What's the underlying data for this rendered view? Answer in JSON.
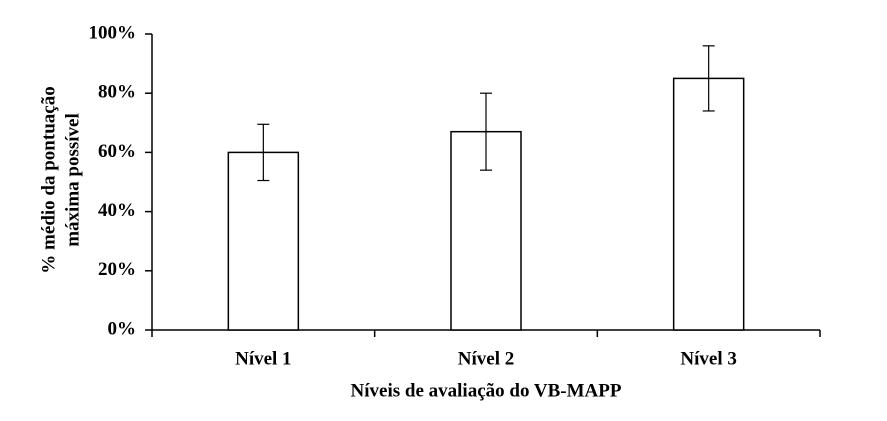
{
  "chart_data": {
    "type": "bar",
    "ylabel": [
      "% médio da pontuação",
      "máxima possível"
    ],
    "xlabel": "Níveis de avaliação do VB-MAPP",
    "categories": [
      "Nível 1",
      "Nível 2",
      "Nível 3"
    ],
    "values": [
      60,
      67,
      85
    ],
    "errors": [
      9.5,
      13,
      11
    ],
    "color": "#ffffff",
    "ylim": [
      0,
      100
    ],
    "yticks": [
      {
        "value": 0,
        "label": "0%"
      },
      {
        "value": 20,
        "label": "20%"
      },
      {
        "value": 40,
        "label": "40%"
      },
      {
        "value": 60,
        "label": "60%"
      },
      {
        "value": 80,
        "label": "80%"
      },
      {
        "value": 100,
        "label": "100%"
      }
    ],
    "grid": false
  }
}
